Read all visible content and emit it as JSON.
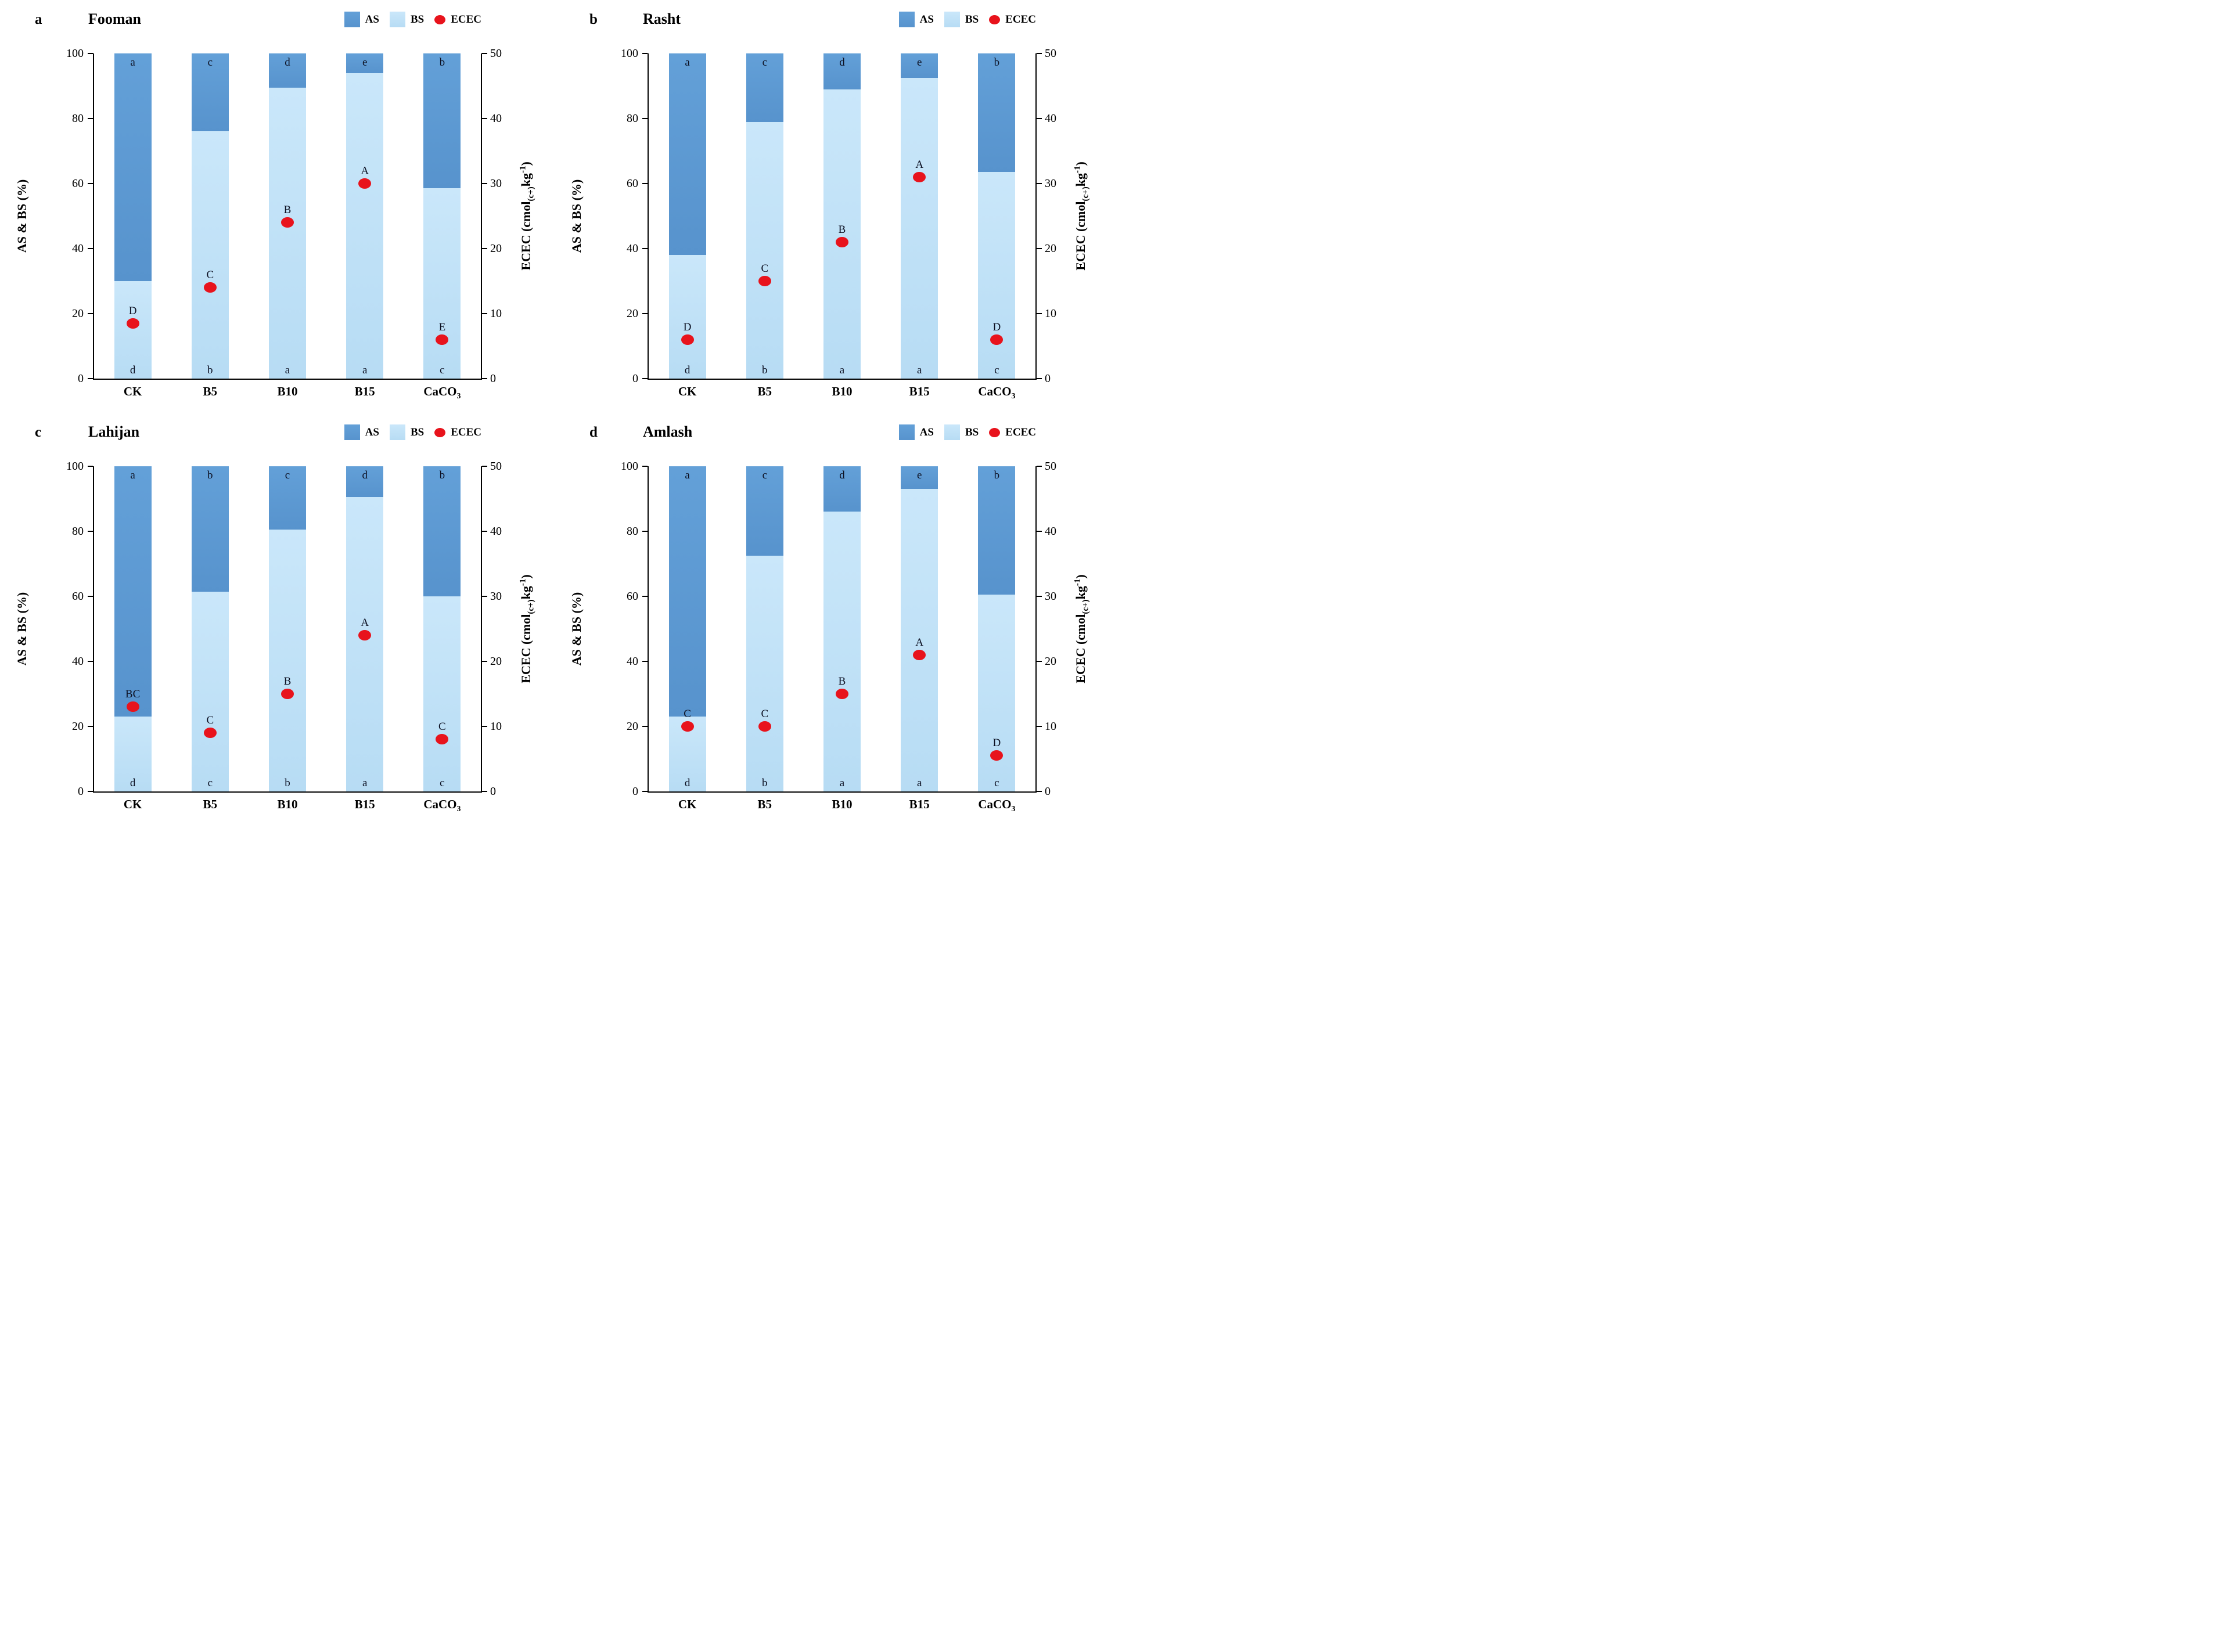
{
  "colors": {
    "as_top": "#63a0d8",
    "as_bottom": "#5793cd",
    "as": "#5b9ad3",
    "bs_top": "#cae7fa",
    "bs_bottom": "#b7dcf4",
    "bs": "#bfe0f6",
    "ecec": "#e8131c",
    "axis": "#000000",
    "text": "#0c1022"
  },
  "chart_data": [
    {
      "type": "bar",
      "panel_letter": "a",
      "title": "Fooman",
      "legend": {
        "as_label": "AS",
        "bs_label": "BS",
        "ecec_label": "ECEC"
      },
      "left_axis": {
        "label": "AS & BS (%)",
        "min": 0,
        "max": 100,
        "ticks": [
          0,
          20,
          40,
          60,
          80,
          100
        ]
      },
      "right_axis": {
        "label_prefix": "ECEC (cmol",
        "label_sub": "(c+)",
        "label_mid": "kg",
        "label_sup": "-1",
        "label_suffix": ")",
        "min": 0,
        "max": 50,
        "ticks": [
          0,
          10,
          20,
          30,
          40,
          50
        ]
      },
      "categories": [
        "CK",
        "B5",
        "B10",
        "B15",
        "CaCO3"
      ],
      "categories_fmt": [
        {
          "base": "CK",
          "sub": ""
        },
        {
          "base": "B5",
          "sub": ""
        },
        {
          "base": "B10",
          "sub": ""
        },
        {
          "base": "B15",
          "sub": ""
        },
        {
          "base": "CaCO",
          "sub": "3"
        }
      ],
      "series": [
        {
          "name": "BS",
          "axis": "left",
          "values": [
            30,
            76,
            89.5,
            94,
            58.5
          ]
        },
        {
          "name": "AS",
          "axis": "left",
          "values": [
            70,
            24,
            10.5,
            6,
            41.5
          ]
        },
        {
          "name": "ECEC",
          "axis": "right",
          "values": [
            8.5,
            14,
            24,
            30,
            6
          ]
        }
      ],
      "bar_top_letters": [
        "a",
        "c",
        "d",
        "e",
        "b"
      ],
      "bar_bottom_letters": [
        "d",
        "b",
        "a",
        "a",
        "c"
      ],
      "ecec_letters": [
        "D",
        "C",
        "B",
        "A",
        "E"
      ]
    },
    {
      "type": "bar",
      "panel_letter": "b",
      "title": "Rasht",
      "legend": {
        "as_label": "AS",
        "bs_label": "BS",
        "ecec_label": "ECEC"
      },
      "left_axis": {
        "label": "AS & BS (%)",
        "min": 0,
        "max": 100,
        "ticks": [
          0,
          20,
          40,
          60,
          80,
          100
        ]
      },
      "right_axis": {
        "label_prefix": "ECEC (cmol",
        "label_sub": "(c+)",
        "label_mid": "kg",
        "label_sup": "-1",
        "label_suffix": ")",
        "min": 0,
        "max": 50,
        "ticks": [
          0,
          10,
          20,
          30,
          40,
          50
        ]
      },
      "categories": [
        "CK",
        "B5",
        "B10",
        "B15",
        "CaCO3"
      ],
      "categories_fmt": [
        {
          "base": "CK",
          "sub": ""
        },
        {
          "base": "B5",
          "sub": ""
        },
        {
          "base": "B10",
          "sub": ""
        },
        {
          "base": "B15",
          "sub": ""
        },
        {
          "base": "CaCO",
          "sub": "3"
        }
      ],
      "series": [
        {
          "name": "BS",
          "axis": "left",
          "values": [
            38,
            79,
            89,
            92.5,
            63.5
          ]
        },
        {
          "name": "AS",
          "axis": "left",
          "values": [
            62,
            21,
            11,
            7.5,
            36.5
          ]
        },
        {
          "name": "ECEC",
          "axis": "right",
          "values": [
            6,
            15,
            21,
            31,
            6
          ]
        }
      ],
      "bar_top_letters": [
        "a",
        "c",
        "d",
        "e",
        "b"
      ],
      "bar_bottom_letters": [
        "d",
        "b",
        "a",
        "a",
        "c"
      ],
      "ecec_letters": [
        "D",
        "C",
        "B",
        "A",
        "D"
      ]
    },
    {
      "type": "bar",
      "panel_letter": "c",
      "title": "Lahijan",
      "legend": {
        "as_label": "AS",
        "bs_label": "BS",
        "ecec_label": "ECEC"
      },
      "left_axis": {
        "label": "AS & BS (%)",
        "min": 0,
        "max": 100,
        "ticks": [
          0,
          20,
          40,
          60,
          80,
          100
        ]
      },
      "right_axis": {
        "label_prefix": "ECEC (cmol",
        "label_sub": "(c+)",
        "label_mid": "kg",
        "label_sup": "-1",
        "label_suffix": ")",
        "min": 0,
        "max": 50,
        "ticks": [
          0,
          10,
          20,
          30,
          40,
          50
        ]
      },
      "categories": [
        "CK",
        "B5",
        "B10",
        "B15",
        "CaCO3"
      ],
      "categories_fmt": [
        {
          "base": "CK",
          "sub": ""
        },
        {
          "base": "B5",
          "sub": ""
        },
        {
          "base": "B10",
          "sub": ""
        },
        {
          "base": "B15",
          "sub": ""
        },
        {
          "base": "CaCO",
          "sub": "3"
        }
      ],
      "series": [
        {
          "name": "BS",
          "axis": "left",
          "values": [
            23,
            61.5,
            80.5,
            90.5,
            60
          ]
        },
        {
          "name": "AS",
          "axis": "left",
          "values": [
            77,
            38.5,
            19.5,
            9.5,
            40
          ]
        },
        {
          "name": "ECEC",
          "axis": "right",
          "values": [
            13,
            9,
            15,
            24,
            8
          ]
        }
      ],
      "bar_top_letters": [
        "a",
        "b",
        "c",
        "d",
        "b"
      ],
      "bar_bottom_letters": [
        "d",
        "c",
        "b",
        "a",
        "c"
      ],
      "ecec_letters": [
        "BC",
        "C",
        "B",
        "A",
        "C"
      ]
    },
    {
      "type": "bar",
      "panel_letter": "d",
      "title": "Amlash",
      "legend": {
        "as_label": "AS",
        "bs_label": "BS",
        "ecec_label": "ECEC"
      },
      "left_axis": {
        "label": "AS & BS (%)",
        "min": 0,
        "max": 100,
        "ticks": [
          0,
          20,
          40,
          60,
          80,
          100
        ]
      },
      "right_axis": {
        "label_prefix": "ECEC (cmol",
        "label_sub": "(c+)",
        "label_mid": "kg",
        "label_sup": "-1",
        "label_suffix": ")",
        "min": 0,
        "max": 50,
        "ticks": [
          0,
          10,
          20,
          30,
          40,
          50
        ]
      },
      "categories": [
        "CK",
        "B5",
        "B10",
        "B15",
        "CaCO3"
      ],
      "categories_fmt": [
        {
          "base": "CK",
          "sub": ""
        },
        {
          "base": "B5",
          "sub": ""
        },
        {
          "base": "B10",
          "sub": ""
        },
        {
          "base": "B15",
          "sub": ""
        },
        {
          "base": "CaCO",
          "sub": "3"
        }
      ],
      "series": [
        {
          "name": "BS",
          "axis": "left",
          "values": [
            23,
            72.5,
            86,
            93,
            60.5
          ]
        },
        {
          "name": "AS",
          "axis": "left",
          "values": [
            77,
            27.5,
            14,
            7,
            39.5
          ]
        },
        {
          "name": "ECEC",
          "axis": "right",
          "values": [
            10,
            10,
            15,
            21,
            5.5
          ]
        }
      ],
      "bar_top_letters": [
        "a",
        "c",
        "d",
        "e",
        "b"
      ],
      "bar_bottom_letters": [
        "d",
        "b",
        "a",
        "a",
        "c"
      ],
      "ecec_letters": [
        "C",
        "C",
        "B",
        "A",
        "D"
      ]
    }
  ]
}
